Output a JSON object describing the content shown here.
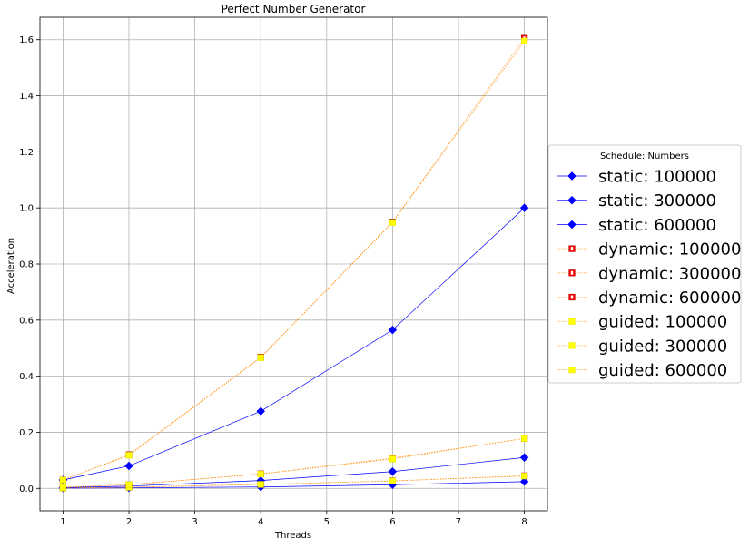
{
  "chart_data": {
    "type": "line",
    "title": "Perfect Number Generator",
    "xlabel": "Threads",
    "ylabel": "Acceleration",
    "x": [
      1,
      2,
      4,
      6,
      8
    ],
    "xlim": [
      0.65,
      8.35
    ],
    "ylim": [
      -0.08,
      1.68
    ],
    "xticks": [
      1,
      2,
      3,
      4,
      5,
      6,
      7,
      8
    ],
    "yticks": [
      "0.0",
      "0.2",
      "0.4",
      "0.6",
      "0.8",
      "1.0",
      "1.2",
      "1.4",
      "1.6"
    ],
    "grid": true,
    "legend": {
      "title": "Schedule: Numbers",
      "placement": "right-outside"
    },
    "series": [
      {
        "name": "static: 100000",
        "values": [
          0.001,
          0.002,
          0.005,
          0.013,
          0.024
        ],
        "color": "#0000ff",
        "marker": "diamond"
      },
      {
        "name": "static: 300000",
        "values": [
          0.003,
          0.008,
          0.028,
          0.06,
          0.11
        ],
        "color": "#0000ff",
        "marker": "diamond"
      },
      {
        "name": "static: 600000",
        "values": [
          0.03,
          0.08,
          0.275,
          0.565,
          1.0
        ],
        "color": "#0000ff",
        "marker": "diamond"
      },
      {
        "name": "dynamic: 100000",
        "values": [
          0.001,
          0.004,
          0.014,
          0.027,
          0.045
        ],
        "color": "#ff0000",
        "marker": "square"
      },
      {
        "name": "dynamic: 300000",
        "values": [
          0.004,
          0.013,
          0.052,
          0.108,
          0.178
        ],
        "color": "#ff0000",
        "marker": "square"
      },
      {
        "name": "dynamic: 600000",
        "values": [
          0.03,
          0.12,
          0.468,
          0.95,
          1.605
        ],
        "color": "#ff0000",
        "marker": "square"
      },
      {
        "name": "guided: 100000",
        "values": [
          0.001,
          0.004,
          0.014,
          0.026,
          0.044
        ],
        "color": "#ffff00",
        "marker": "square"
      },
      {
        "name": "guided: 300000",
        "values": [
          0.004,
          0.013,
          0.051,
          0.105,
          0.178
        ],
        "color": "#ffff00",
        "marker": "square"
      },
      {
        "name": "guided: 600000",
        "values": [
          0.03,
          0.118,
          0.466,
          0.948,
          1.595
        ],
        "color": "#ffff00",
        "marker": "square"
      }
    ]
  }
}
